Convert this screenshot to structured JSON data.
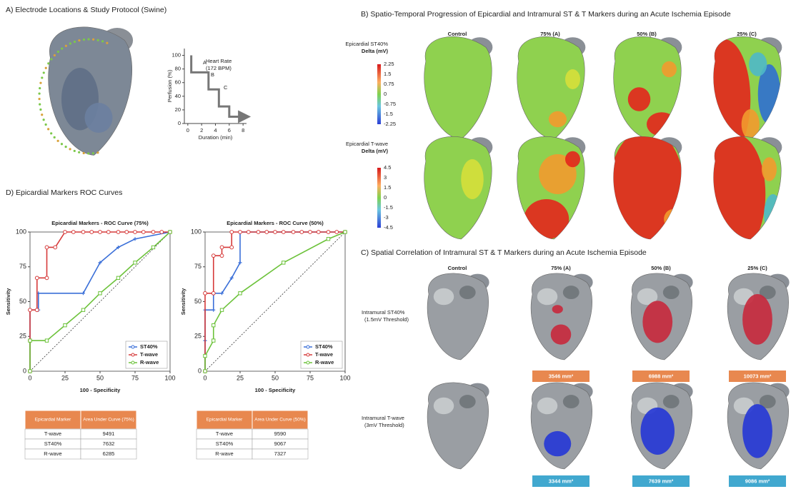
{
  "panel_a": {
    "title": "A) Electrode Locations & Study Protocol (Swine)"
  },
  "panel_b": {
    "title": "B) Spatio-Temporal Progression of Epicardial and Intramural ST & T Markers during an Acute Ischemia Episode",
    "columns": [
      "Control",
      "75% (A)",
      "50% (B)",
      "25% (C)"
    ],
    "rows": [
      {
        "label": "Epicardial ST40%",
        "unit": "Delta (mV)",
        "scale": [
          "2.25",
          "1.5",
          "0.75",
          "0",
          "-0.75",
          "-1.5",
          "-2.25"
        ]
      },
      {
        "label": "Epicardial T-wave",
        "unit": "Delta (mV)",
        "scale": [
          "4.5",
          "3",
          "1.5",
          "0",
          "-1.5",
          "-3",
          "-4.5"
        ]
      }
    ]
  },
  "panel_c": {
    "title": "C) Spatial Correlation of Intramural ST & T Markers during an Acute Ischemia Episode",
    "columns": [
      "Control",
      "75% (A)",
      "50% (B)",
      "25% (C)"
    ],
    "rows": [
      {
        "label": "Intramural ST40%",
        "threshold": "(1.5mV Threshold)",
        "areas": [
          "3546 mm²",
          "6988 mm²",
          "10073 mm²"
        ]
      },
      {
        "label": "Intramural T-wave",
        "threshold": "(3mV Threshold)",
        "areas": [
          "3344 mm²",
          "7639 mm²",
          "9086 mm²"
        ]
      }
    ]
  },
  "panel_d": {
    "title": "D) Epicardial Markers ROC Curves",
    "tables": [
      {
        "header": [
          "Epicardial Marker",
          "Area Under Curve (75%)"
        ],
        "rows": [
          [
            "T-wave",
            "9491"
          ],
          [
            "ST40%",
            "7632"
          ],
          [
            "R-wave",
            "6285"
          ]
        ]
      },
      {
        "header": [
          "Epicardial Marker",
          "Area Under Curve (50%)"
        ],
        "rows": [
          [
            "T-wave",
            "9590"
          ],
          [
            "ST40%",
            "9067"
          ],
          [
            "R-wave",
            "7327"
          ]
        ]
      }
    ]
  },
  "chart_data": [
    {
      "type": "line",
      "xlabel": "Duration (min)",
      "ylabel": "Perfusion (%)",
      "annotations": [
        "Heart Rate",
        "(172 BPM)",
        "A",
        "B",
        "C"
      ],
      "xlim": [
        -0.5,
        8.5
      ],
      "ylim": [
        0,
        110
      ],
      "xticks": [
        0,
        2,
        4,
        6,
        8
      ],
      "yticks": [
        0,
        20,
        40,
        60,
        80,
        100
      ],
      "series": [
        {
          "color": "#777777",
          "x": [
            0.5,
            0.5,
            3,
            3,
            4.5,
            4.5,
            6,
            6,
            8.2
          ],
          "values": [
            100,
            75,
            75,
            50,
            50,
            25,
            25,
            10,
            10
          ]
        }
      ]
    },
    {
      "type": "line",
      "title": "Epicardial Markers - ROC Curve (75%)",
      "xlabel": "100 - Specificity",
      "ylabel": "Sensitivity",
      "xlim": [
        0,
        100
      ],
      "ylim": [
        0,
        100
      ],
      "xticks": [
        0,
        25,
        50,
        75,
        100
      ],
      "yticks": [
        0,
        25,
        50,
        75,
        100
      ],
      "legend": "lower right",
      "series": [
        {
          "name": "ST40%",
          "color": "#3a6fd8",
          "marker": "star",
          "x": [
            0,
            0,
            0,
            6,
            6,
            38,
            50,
            63,
            75,
            100
          ],
          "values": [
            0,
            22,
            44,
            44,
            56,
            56,
            78,
            89,
            95,
            100
          ]
        },
        {
          "name": "T-wave",
          "color": "#d63a3a",
          "marker": "circle",
          "x": [
            0,
            0,
            0,
            5,
            5,
            12,
            12,
            18,
            25,
            31,
            38,
            44,
            50,
            56,
            63,
            69,
            75,
            81,
            88,
            94,
            100
          ],
          "values": [
            0,
            22,
            44,
            44,
            67,
            67,
            89,
            89,
            100,
            100,
            100,
            100,
            100,
            100,
            100,
            100,
            100,
            100,
            100,
            100,
            100
          ]
        },
        {
          "name": "R-wave",
          "color": "#6cc23a",
          "marker": "square",
          "x": [
            0,
            0,
            12,
            25,
            38,
            50,
            63,
            75,
            88,
            100
          ],
          "values": [
            0,
            22,
            22,
            33,
            44,
            56,
            67,
            78,
            89,
            100
          ]
        }
      ]
    },
    {
      "type": "line",
      "title": "Epicardial Markers - ROC Curve (50%)",
      "xlabel": "100 - Specificity",
      "ylabel": "Sensitivity",
      "xlim": [
        0,
        100
      ],
      "ylim": [
        0,
        100
      ],
      "xticks": [
        0,
        25,
        50,
        75,
        100
      ],
      "yticks": [
        0,
        25,
        50,
        75,
        100
      ],
      "legend": "lower right",
      "series": [
        {
          "name": "ST40%",
          "color": "#3a6fd8",
          "marker": "star",
          "x": [
            0,
            0,
            0,
            6,
            6,
            12,
            19,
            25,
            25,
            100
          ],
          "values": [
            0,
            22,
            44,
            44,
            56,
            56,
            67,
            78,
            100,
            100
          ]
        },
        {
          "name": "T-wave",
          "color": "#d63a3a",
          "marker": "circle",
          "x": [
            0,
            0,
            6,
            6,
            12,
            12,
            19,
            19,
            25,
            31,
            38,
            44,
            50,
            56,
            63,
            69,
            75,
            81,
            88,
            94,
            100
          ],
          "values": [
            0,
            56,
            56,
            83,
            83,
            89,
            89,
            100,
            100,
            100,
            100,
            100,
            100,
            100,
            100,
            100,
            100,
            100,
            100,
            100,
            100
          ]
        },
        {
          "name": "R-wave",
          "color": "#6cc23a",
          "marker": "square",
          "x": [
            0,
            0,
            6,
            6,
            12,
            25,
            56,
            88,
            100
          ],
          "values": [
            0,
            11,
            22,
            33,
            44,
            56,
            78,
            95,
            100
          ]
        }
      ]
    }
  ]
}
